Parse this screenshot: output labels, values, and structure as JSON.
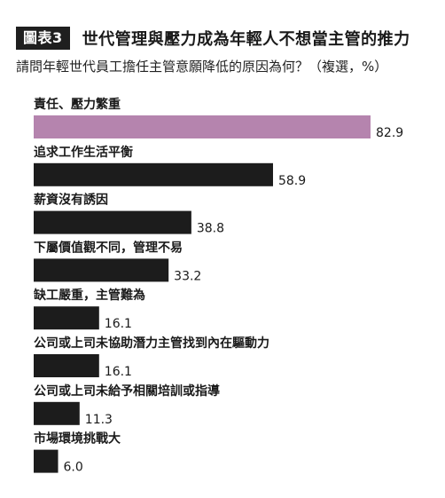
{
  "header": {
    "badge": "圖表3",
    "title": "世代管理與壓力成為年輕人不想當主管的推力"
  },
  "subtitle": "請問年輕世代員工擔任主管意願降低的原因為何？（複選，%）",
  "colors": {
    "highlight": "#b584ae",
    "bar": "#1c1c1c",
    "text": "#1a1a1a"
  },
  "chart_data": {
    "type": "bar",
    "orientation": "horizontal",
    "categories": [
      "責任、壓力繁重",
      "追求工作生活平衡",
      "薪資沒有誘因",
      "下屬價值觀不同，管理不易",
      "缺工嚴重，主管難為",
      "公司或上司未協助潛力主管找到內在驅動力",
      "公司或上司未給予相關培訓或指導",
      "市場環境挑戰大"
    ],
    "values": [
      82.9,
      58.9,
      38.8,
      33.2,
      16.1,
      16.1,
      11.3,
      6.0
    ],
    "value_labels": [
      "82.9",
      "58.9",
      "38.8",
      "33.2",
      "16.1",
      "16.1",
      "11.3",
      "6.0"
    ],
    "highlight_index": 0,
    "xlim": [
      0,
      82.9
    ],
    "grid": false,
    "legend": "none"
  }
}
